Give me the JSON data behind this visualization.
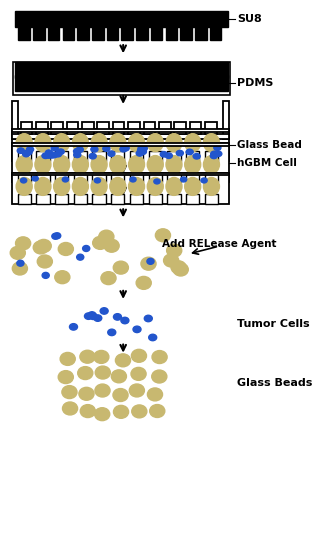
{
  "bg_color": "#ffffff",
  "black_color": "#000000",
  "tan_color": "#c8b870",
  "blue_color": "#2255cc",
  "label_su8": "SU8",
  "label_pdms": "PDMS",
  "label_glass_bead": "Glass Bead",
  "label_hgbm": "hGBM Cell",
  "label_release": "Add RELease Agent",
  "label_tumor": "Tumor Cells",
  "label_glass_beads2": "Glass Beads",
  "figure_width": 3.2,
  "figure_height": 5.38,
  "dpi": 100
}
